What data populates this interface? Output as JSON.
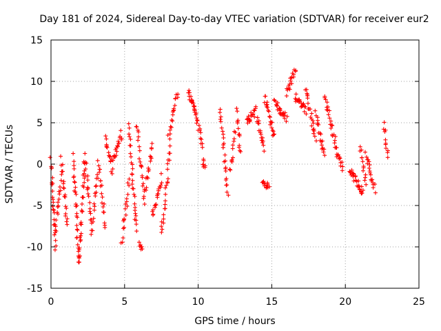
{
  "chart_data": {
    "type": "scatter",
    "title": "Day 181 of 2024, Sidereal Day-to-day VTEC variation (SDTVAR) for receiver eur2",
    "xlabel": "GPS time / hours",
    "ylabel": "SDTVAR / TECUs",
    "xlim": [
      0,
      25
    ],
    "ylim": [
      -15,
      15
    ],
    "x_ticks": [
      0,
      5,
      10,
      15,
      20,
      25
    ],
    "x_tick_labels": [
      "0",
      "5",
      "10",
      "15",
      "20",
      "25"
    ],
    "y_ticks": [
      -15,
      -10,
      -5,
      0,
      5,
      10,
      15
    ],
    "y_tick_labels": [
      "-15",
      "-10",
      "-5",
      "0",
      "5",
      "10",
      "15"
    ],
    "grid": true,
    "marker": "+",
    "color": "#ff0000",
    "series": [
      {
        "name": "SDTVAR",
        "segments": [
          {
            "x": [
              0.0,
              0.3
            ],
            "y": [
              0.5,
              -10.0
            ]
          },
          {
            "x": [
              0.3,
              0.7
            ],
            "y": [
              -8.5,
              -1.0
            ]
          },
          {
            "x": [
              0.7,
              1.1
            ],
            "y": [
              0.5,
              -7.5
            ]
          },
          {
            "x": [
              1.5,
              1.9
            ],
            "y": [
              0.8,
              -12.2
            ]
          },
          {
            "x": [
              1.9,
              2.3
            ],
            "y": [
              -12.0,
              0.5
            ]
          },
          {
            "x": [
              2.3,
              2.8
            ],
            "y": [
              1.2,
              -8.5
            ]
          },
          {
            "x": [
              2.8,
              3.2
            ],
            "y": [
              -7.0,
              -1.0
            ]
          },
          {
            "x": [
              3.2,
              3.7
            ],
            "y": [
              0.5,
              -7.5
            ]
          },
          {
            "x": [
              3.7,
              4.2
            ],
            "y": [
              3.2,
              -1.0
            ]
          },
          {
            "x": [
              4.2,
              4.8
            ],
            "y": [
              0.5,
              3.8
            ]
          },
          {
            "x": [
              4.8,
              5.3
            ],
            "y": [
              -9.5,
              -2.0
            ]
          },
          {
            "x": [
              5.3,
              5.8
            ],
            "y": [
              4.5,
              -8.0
            ]
          },
          {
            "x": [
              5.8,
              6.3
            ],
            "y": [
              4.8,
              -3.0
            ]
          },
          {
            "x": [
              6.0,
              6.2
            ],
            "y": [
              -9.6,
              -10.2
            ]
          },
          {
            "x": [
              6.3,
              6.9
            ],
            "y": [
              -4.5,
              2.5
            ]
          },
          {
            "x": [
              6.9,
              7.5
            ],
            "y": [
              -6.5,
              -1.5
            ]
          },
          {
            "x": [
              7.5,
              8.1
            ],
            "y": [
              -8.5,
              1.8
            ]
          },
          {
            "x": [
              8.0,
              8.6
            ],
            "y": [
              3.0,
              8.8
            ]
          },
          {
            "x": [
              9.3,
              9.8
            ],
            "y": [
              9.0,
              6.2
            ]
          },
          {
            "x": [
              9.6,
              10.3
            ],
            "y": [
              8.0,
              2.0
            ]
          },
          {
            "x": [
              10.3,
              10.5
            ],
            "y": [
              0.3,
              -0.2
            ]
          },
          {
            "x": [
              11.5,
              12.0
            ],
            "y": [
              7.0,
              -3.8
            ]
          },
          {
            "x": [
              12.2,
              12.5
            ],
            "y": [
              -1.0,
              4.0
            ]
          },
          {
            "x": [
              12.6,
              12.9
            ],
            "y": [
              6.5,
              1.2
            ]
          },
          {
            "x": [
              13.3,
              13.9
            ],
            "y": [
              5.0,
              6.5
            ]
          },
          {
            "x": [
              14.0,
              14.5
            ],
            "y": [
              5.5,
              2.0
            ]
          },
          {
            "x": [
              14.4,
              14.8
            ],
            "y": [
              -1.8,
              -2.8
            ]
          },
          {
            "x": [
              14.5,
              15.2
            ],
            "y": [
              8.0,
              3.5
            ]
          },
          {
            "x": [
              15.2,
              16.0
            ],
            "y": [
              7.5,
              5.5
            ]
          },
          {
            "x": [
              16.0,
              16.6
            ],
            "y": [
              8.5,
              11.5
            ]
          },
          {
            "x": [
              16.6,
              17.3
            ],
            "y": [
              8.0,
              6.5
            ]
          },
          {
            "x": [
              17.3,
              18.0
            ],
            "y": [
              9.0,
              3.0
            ]
          },
          {
            "x": [
              18.0,
              18.6
            ],
            "y": [
              6.0,
              1.0
            ]
          },
          {
            "x": [
              18.6,
              19.4
            ],
            "y": [
              8.0,
              2.0
            ]
          },
          {
            "x": [
              19.4,
              19.8
            ],
            "y": [
              1.5,
              -0.5
            ]
          },
          {
            "x": [
              20.3,
              21.2
            ],
            "y": [
              -0.5,
              -3.5
            ]
          },
          {
            "x": [
              21.0,
              21.4
            ],
            "y": [
              2.0,
              -2.5
            ]
          },
          {
            "x": [
              21.4,
              22.0
            ],
            "y": [
              1.0,
              -3.0
            ]
          },
          {
            "x": [
              22.6,
              22.9
            ],
            "y": [
              5.0,
              0.5
            ]
          }
        ]
      }
    ]
  }
}
